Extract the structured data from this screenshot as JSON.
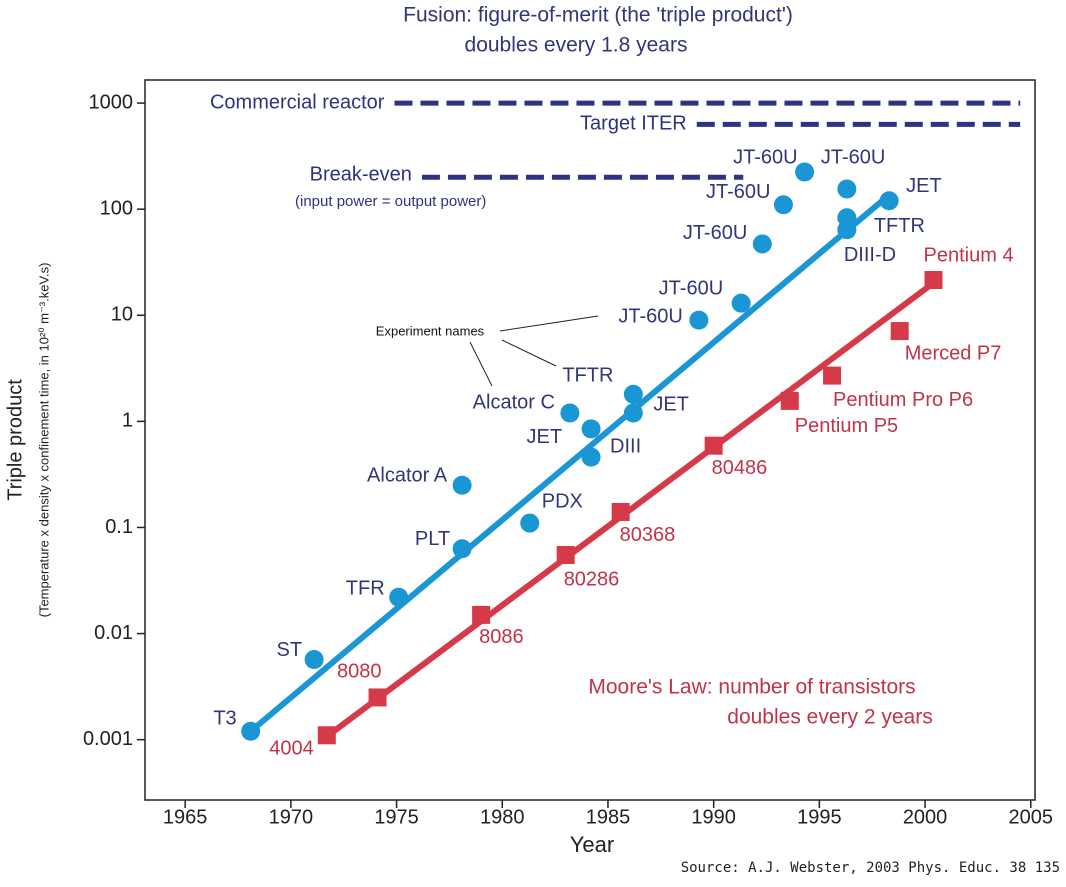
{
  "chart_data": {
    "type": "scatter",
    "title": "Fusion: figure-of-merit (the 'triple product')",
    "subtitle": "doubles every 1.8 years",
    "x_label": "Year",
    "y_label": "Triple product",
    "y_sublabel": "(Temperature x density x confinement time, in 10²⁰ m⁻³.keV.s)",
    "source": "Source: A.J. Webster, 2003 Phys. Educ. 38 135",
    "log_y": true,
    "xlim": [
      1963.1,
      2005.2
    ],
    "ylim": [
      0.00027,
      1650
    ],
    "xticks": [
      1965,
      1970,
      1975,
      1980,
      1985,
      1990,
      1995,
      2000,
      2005
    ],
    "yticks": [
      0.001,
      0.01,
      0.1,
      1,
      10,
      100,
      1000
    ],
    "series": [
      {
        "color": "#1a96d4",
        "label_color": "#33357a",
        "marker": "circle",
        "x": [
          1968.1,
          1971.1,
          1975.1,
          1978.1,
          1978.1,
          1981.3,
          1983.2,
          1984.2,
          1984.2,
          1986.2,
          1986.2,
          1989.3,
          1991.3,
          1992.3,
          1993.3,
          1994.3,
          1996.3,
          1996.3,
          1996.3,
          1998.3
        ],
        "values": [
          0.0012,
          0.0057,
          0.022,
          0.063,
          0.25,
          0.11,
          1.2,
          0.85,
          0.46,
          1.8,
          1.2,
          9,
          13,
          47,
          110,
          224,
          155,
          83,
          64,
          120
        ],
        "labels": [
          "T3",
          "ST",
          "TFR",
          "PLT",
          "Alcator A",
          "PDX",
          "Alcator C",
          "JET",
          "DIII",
          "TFTR",
          "JET",
          "JT-60U",
          "JT-60U",
          "JT-60U",
          "JT-60U",
          "JT-60U",
          "JT-60U",
          "TFTR",
          "DIII-D",
          "JET"
        ],
        "trend": {
          "x": [
            1968.1,
            1998.3
          ],
          "values": [
            0.0012,
            136
          ]
        }
      },
      {
        "color": "#d63a48",
        "label_color": "#c2334a",
        "marker": "square",
        "x": [
          1971.7,
          1974.1,
          1979.0,
          1983.0,
          1985.6,
          1990.0,
          1993.6,
          1995.6,
          1998.8,
          2000.4
        ],
        "values": [
          0.0011,
          0.0025,
          0.015,
          0.055,
          0.14,
          0.59,
          1.56,
          2.7,
          7.1,
          21.5
        ],
        "labels": [
          "4004",
          "8080",
          "8086",
          "80286",
          "80368",
          "80486",
          "Pentium P5",
          "Pentium Pro P6",
          "Merced P7",
          "Pentium 4"
        ],
        "trend": {
          "x": [
            1971.5,
            2000.4
          ],
          "values": [
            0.001,
            20.2
          ]
        }
      }
    ],
    "reference_lines": [
      {
        "label": "Commercial reactor",
        "value": 1000,
        "x": [
          1974.9,
          2004.5
        ],
        "color": "#2e3283"
      },
      {
        "label": "Target ITER",
        "value": 630,
        "x": [
          1989.2,
          2004.5
        ],
        "color": "#2e3283"
      },
      {
        "label": "Break-even",
        "value": 200,
        "x": [
          1976.2,
          1991.4
        ],
        "color": "#2e3283",
        "note": "(input power = output power)"
      }
    ],
    "annotations": {
      "experiment_names": "Experiment names",
      "moore_law": [
        "Moore's Law: number of transistors",
        "doubles every 2 years"
      ]
    }
  }
}
